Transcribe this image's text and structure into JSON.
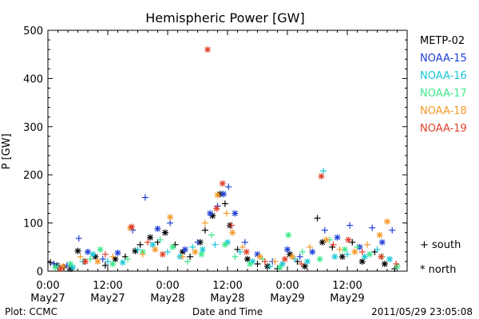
{
  "chart_data": {
    "type": "scatter",
    "title": "Hemispheric Power [GW]",
    "xlabel": "Date and Time",
    "ylabel": "P [GW]",
    "ylim": [
      0,
      500
    ],
    "yticks": [
      0,
      100,
      200,
      300,
      400,
      500
    ],
    "xlim": [
      0,
      72
    ],
    "xticks": [
      {
        "x": 0,
        "time": "0:00",
        "date": "May27"
      },
      {
        "x": 12,
        "time": "12:00",
        "date": "May27"
      },
      {
        "x": 24,
        "time": "0:00",
        "date": "May28"
      },
      {
        "x": 36,
        "time": "12:00",
        "date": "May28"
      },
      {
        "x": 48,
        "time": "0:00",
        "date": "May29"
      },
      {
        "x": 60,
        "time": "12:00",
        "date": "May29"
      }
    ],
    "legend_position": "right",
    "series": [
      {
        "name": "METP-02",
        "color": "#000000"
      },
      {
        "name": "NOAA-15",
        "color": "#1f3fd6"
      },
      {
        "name": "NOAA-16",
        "color": "#18c8d8"
      },
      {
        "name": "NOAA-17",
        "color": "#3ee88c"
      },
      {
        "name": "NOAA-18",
        "color": "#f39a2a"
      },
      {
        "name": "NOAA-19",
        "color": "#e0402a"
      }
    ],
    "marker_legend": [
      {
        "symbol": "+",
        "label": "south"
      },
      {
        "symbol": "*",
        "label": "north"
      }
    ],
    "footer_left": "Plot: CCMC",
    "footer_right": "2011/05/29 23:05:08",
    "points": [
      {
        "s": 0,
        "m": "+",
        "x": 0.5,
        "y": 18
      },
      {
        "s": 0,
        "m": "*",
        "x": 1.8,
        "y": 12
      },
      {
        "s": 0,
        "m": "+",
        "x": 3.2,
        "y": 8
      },
      {
        "s": 0,
        "m": "*",
        "x": 4.6,
        "y": 5
      },
      {
        "s": 0,
        "m": "*",
        "x": 6.0,
        "y": 42
      },
      {
        "s": 0,
        "m": "+",
        "x": 7.4,
        "y": 20
      },
      {
        "s": 0,
        "m": "*",
        "x": 9.5,
        "y": 30
      },
      {
        "s": 0,
        "m": "+",
        "x": 11.5,
        "y": 12
      },
      {
        "s": 0,
        "m": "*",
        "x": 13.5,
        "y": 25
      },
      {
        "s": 0,
        "m": "+",
        "x": 15.5,
        "y": 30
      },
      {
        "s": 0,
        "m": "*",
        "x": 17.5,
        "y": 42
      },
      {
        "s": 0,
        "m": "+",
        "x": 18.5,
        "y": 55
      },
      {
        "s": 0,
        "m": "*",
        "x": 20.5,
        "y": 70
      },
      {
        "s": 0,
        "m": "+",
        "x": 22.0,
        "y": 60
      },
      {
        "s": 0,
        "m": "*",
        "x": 23.5,
        "y": 80
      },
      {
        "s": 0,
        "m": "+",
        "x": 25.5,
        "y": 55
      },
      {
        "s": 0,
        "m": "*",
        "x": 27.0,
        "y": 40
      },
      {
        "s": 0,
        "m": "+",
        "x": 28.5,
        "y": 30
      },
      {
        "s": 0,
        "m": "*",
        "x": 30.5,
        "y": 60
      },
      {
        "s": 0,
        "m": "+",
        "x": 31.5,
        "y": 85
      },
      {
        "s": 0,
        "m": "*",
        "x": 33.0,
        "y": 115
      },
      {
        "s": 0,
        "m": "*",
        "x": 34.5,
        "y": 160
      },
      {
        "s": 0,
        "m": "+",
        "x": 35.5,
        "y": 140
      },
      {
        "s": 0,
        "m": "*",
        "x": 36.5,
        "y": 95
      },
      {
        "s": 0,
        "m": "+",
        "x": 38.0,
        "y": 45
      },
      {
        "s": 0,
        "m": "*",
        "x": 40.0,
        "y": 25
      },
      {
        "s": 0,
        "m": "+",
        "x": 42.0,
        "y": 15
      },
      {
        "s": 0,
        "m": "*",
        "x": 44.0,
        "y": 10
      },
      {
        "s": 0,
        "m": "+",
        "x": 46.0,
        "y": 5
      },
      {
        "s": 0,
        "m": "*",
        "x": 48.5,
        "y": 35
      },
      {
        "s": 0,
        "m": "+",
        "x": 50.0,
        "y": 20
      },
      {
        "s": 0,
        "m": "*",
        "x": 51.5,
        "y": 10
      },
      {
        "s": 0,
        "m": "+",
        "x": 54.0,
        "y": 110
      },
      {
        "s": 0,
        "m": "*",
        "x": 55.0,
        "y": 60
      },
      {
        "s": 0,
        "m": "+",
        "x": 57.0,
        "y": 50
      },
      {
        "s": 0,
        "m": "*",
        "x": 59.0,
        "y": 30
      },
      {
        "s": 0,
        "m": "+",
        "x": 61.0,
        "y": 60
      },
      {
        "s": 0,
        "m": "*",
        "x": 63.0,
        "y": 20
      },
      {
        "s": 0,
        "m": "+",
        "x": 65.5,
        "y": 40
      },
      {
        "s": 0,
        "m": "*",
        "x": 67.5,
        "y": 15
      },
      {
        "s": 0,
        "m": "+",
        "x": 69.5,
        "y": 5
      },
      {
        "s": 1,
        "m": "+",
        "x": 1.2,
        "y": 15
      },
      {
        "s": 1,
        "m": "+",
        "x": 3.8,
        "y": 12
      },
      {
        "s": 1,
        "m": "+",
        "x": 6.2,
        "y": 68
      },
      {
        "s": 1,
        "m": "*",
        "x": 8.0,
        "y": 40
      },
      {
        "s": 1,
        "m": "+",
        "x": 11.0,
        "y": 25
      },
      {
        "s": 1,
        "m": "*",
        "x": 14.0,
        "y": 38
      },
      {
        "s": 1,
        "m": "+",
        "x": 17.0,
        "y": 85
      },
      {
        "s": 1,
        "m": "+",
        "x": 19.5,
        "y": 153
      },
      {
        "s": 1,
        "m": "*",
        "x": 22.0,
        "y": 88
      },
      {
        "s": 1,
        "m": "+",
        "x": 24.5,
        "y": 100
      },
      {
        "s": 1,
        "m": "*",
        "x": 27.5,
        "y": 45
      },
      {
        "s": 1,
        "m": "+",
        "x": 30.0,
        "y": 60
      },
      {
        "s": 1,
        "m": "*",
        "x": 32.5,
        "y": 120
      },
      {
        "s": 1,
        "m": "+",
        "x": 34.0,
        "y": 135
      },
      {
        "s": 1,
        "m": "*",
        "x": 35.2,
        "y": 160
      },
      {
        "s": 1,
        "m": "+",
        "x": 36.2,
        "y": 175
      },
      {
        "s": 1,
        "m": "*",
        "x": 37.5,
        "y": 120
      },
      {
        "s": 1,
        "m": "+",
        "x": 39.5,
        "y": 60
      },
      {
        "s": 1,
        "m": "*",
        "x": 42.0,
        "y": 35
      },
      {
        "s": 1,
        "m": "+",
        "x": 45.0,
        "y": 20
      },
      {
        "s": 1,
        "m": "*",
        "x": 48.0,
        "y": 45
      },
      {
        "s": 1,
        "m": "+",
        "x": 50.5,
        "y": 30
      },
      {
        "s": 1,
        "m": "*",
        "x": 53.0,
        "y": 40
      },
      {
        "s": 1,
        "m": "+",
        "x": 55.5,
        "y": 85
      },
      {
        "s": 1,
        "m": "*",
        "x": 58.0,
        "y": 70
      },
      {
        "s": 1,
        "m": "+",
        "x": 60.5,
        "y": 95
      },
      {
        "s": 1,
        "m": "*",
        "x": 62.5,
        "y": 50
      },
      {
        "s": 1,
        "m": "+",
        "x": 65.0,
        "y": 90
      },
      {
        "s": 1,
        "m": "*",
        "x": 67.0,
        "y": 60
      },
      {
        "s": 1,
        "m": "+",
        "x": 69.0,
        "y": 85
      },
      {
        "s": 2,
        "m": "+",
        "x": 2.0,
        "y": 10
      },
      {
        "s": 2,
        "m": "*",
        "x": 5.0,
        "y": 8
      },
      {
        "s": 2,
        "m": "+",
        "x": 7.0,
        "y": 20
      },
      {
        "s": 2,
        "m": "*",
        "x": 9.0,
        "y": 35
      },
      {
        "s": 2,
        "m": "+",
        "x": 12.0,
        "y": 20
      },
      {
        "s": 2,
        "m": "*",
        "x": 15.0,
        "y": 18
      },
      {
        "s": 2,
        "m": "+",
        "x": 18.0,
        "y": 45
      },
      {
        "s": 2,
        "m": "*",
        "x": 21.0,
        "y": 55
      },
      {
        "s": 2,
        "m": "+",
        "x": 24.0,
        "y": 40
      },
      {
        "s": 2,
        "m": "*",
        "x": 26.5,
        "y": 30
      },
      {
        "s": 2,
        "m": "+",
        "x": 29.0,
        "y": 50
      },
      {
        "s": 2,
        "m": "*",
        "x": 31.0,
        "y": 45
      },
      {
        "s": 2,
        "m": "+",
        "x": 33.5,
        "y": 55
      },
      {
        "s": 2,
        "m": "*",
        "x": 36.0,
        "y": 60
      },
      {
        "s": 2,
        "m": "+",
        "x": 38.5,
        "y": 40
      },
      {
        "s": 2,
        "m": "*",
        "x": 41.0,
        "y": 20
      },
      {
        "s": 2,
        "m": "+",
        "x": 44.5,
        "y": 10
      },
      {
        "s": 2,
        "m": "*",
        "x": 47.0,
        "y": 15
      },
      {
        "s": 2,
        "m": "+",
        "x": 49.5,
        "y": 25
      },
      {
        "s": 2,
        "m": "*",
        "x": 52.0,
        "y": 20
      },
      {
        "s": 2,
        "m": "+",
        "x": 55.2,
        "y": 208
      },
      {
        "s": 2,
        "m": "*",
        "x": 57.5,
        "y": 30
      },
      {
        "s": 2,
        "m": "+",
        "x": 60.0,
        "y": 35
      },
      {
        "s": 2,
        "m": "*",
        "x": 63.5,
        "y": 30
      },
      {
        "s": 2,
        "m": "+",
        "x": 66.0,
        "y": 45
      },
      {
        "s": 2,
        "m": "*",
        "x": 68.5,
        "y": 25
      },
      {
        "s": 3,
        "m": "*",
        "x": 1.5,
        "y": 8
      },
      {
        "s": 3,
        "m": "*",
        "x": 4.5,
        "y": 15
      },
      {
        "s": 3,
        "m": "+",
        "x": 8.5,
        "y": 25
      },
      {
        "s": 3,
        "m": "*",
        "x": 10.5,
        "y": 45
      },
      {
        "s": 3,
        "m": "*",
        "x": 13.0,
        "y": 15
      },
      {
        "s": 3,
        "m": "+",
        "x": 16.0,
        "y": 25
      },
      {
        "s": 3,
        "m": "*",
        "x": 19.0,
        "y": 40
      },
      {
        "s": 3,
        "m": "+",
        "x": 22.5,
        "y": 65
      },
      {
        "s": 3,
        "m": "*",
        "x": 25.0,
        "y": 50
      },
      {
        "s": 3,
        "m": "+",
        "x": 28.0,
        "y": 20
      },
      {
        "s": 3,
        "m": "*",
        "x": 30.8,
        "y": 35
      },
      {
        "s": 3,
        "m": "+",
        "x": 32.8,
        "y": 75
      },
      {
        "s": 3,
        "m": "*",
        "x": 35.5,
        "y": 55
      },
      {
        "s": 3,
        "m": "+",
        "x": 37.5,
        "y": 30
      },
      {
        "s": 3,
        "m": "*",
        "x": 40.5,
        "y": 15
      },
      {
        "s": 3,
        "m": "+",
        "x": 43.0,
        "y": 25
      },
      {
        "s": 3,
        "m": "*",
        "x": 46.5,
        "y": 8
      },
      {
        "s": 3,
        "m": "*",
        "x": 48.2,
        "y": 75
      },
      {
        "s": 3,
        "m": "+",
        "x": 51.0,
        "y": 40
      },
      {
        "s": 3,
        "m": "*",
        "x": 54.5,
        "y": 25
      },
      {
        "s": 3,
        "m": "+",
        "x": 56.5,
        "y": 65
      },
      {
        "s": 3,
        "m": "*",
        "x": 59.5,
        "y": 45
      },
      {
        "s": 3,
        "m": "+",
        "x": 62.0,
        "y": 50
      },
      {
        "s": 3,
        "m": "*",
        "x": 64.5,
        "y": 35
      },
      {
        "s": 3,
        "m": "+",
        "x": 67.0,
        "y": 30
      },
      {
        "s": 3,
        "m": "*",
        "x": 70.0,
        "y": 10
      },
      {
        "s": 4,
        "m": "*",
        "x": 3.0,
        "y": 10
      },
      {
        "s": 4,
        "m": "+",
        "x": 6.5,
        "y": 30
      },
      {
        "s": 4,
        "m": "*",
        "x": 10.0,
        "y": 20
      },
      {
        "s": 4,
        "m": "+",
        "x": 13.0,
        "y": 30
      },
      {
        "s": 4,
        "m": "*",
        "x": 16.5,
        "y": 90
      },
      {
        "s": 4,
        "m": "+",
        "x": 19.0,
        "y": 35
      },
      {
        "s": 4,
        "m": "*",
        "x": 21.5,
        "y": 45
      },
      {
        "s": 4,
        "m": "*",
        "x": 24.5,
        "y": 112
      },
      {
        "s": 4,
        "m": "+",
        "x": 27.0,
        "y": 30
      },
      {
        "s": 4,
        "m": "*",
        "x": 29.5,
        "y": 40
      },
      {
        "s": 4,
        "m": "+",
        "x": 31.5,
        "y": 100
      },
      {
        "s": 4,
        "m": "*",
        "x": 34.0,
        "y": 158
      },
      {
        "s": 4,
        "m": "+",
        "x": 35.8,
        "y": 120
      },
      {
        "s": 4,
        "m": "*",
        "x": 37.0,
        "y": 80
      },
      {
        "s": 4,
        "m": "+",
        "x": 39.0,
        "y": 50
      },
      {
        "s": 4,
        "m": "*",
        "x": 42.5,
        "y": 30
      },
      {
        "s": 4,
        "m": "+",
        "x": 45.5,
        "y": 20
      },
      {
        "s": 4,
        "m": "*",
        "x": 49.0,
        "y": 30
      },
      {
        "s": 4,
        "m": "+",
        "x": 52.5,
        "y": 50
      },
      {
        "s": 4,
        "m": "*",
        "x": 55.8,
        "y": 65
      },
      {
        "s": 4,
        "m": "+",
        "x": 58.5,
        "y": 45
      },
      {
        "s": 4,
        "m": "*",
        "x": 61.5,
        "y": 40
      },
      {
        "s": 4,
        "m": "+",
        "x": 64.0,
        "y": 55
      },
      {
        "s": 4,
        "m": "*",
        "x": 66.5,
        "y": 75
      },
      {
        "s": 4,
        "m": "*",
        "x": 68.0,
        "y": 103
      },
      {
        "s": 5,
        "m": "*",
        "x": 2.5,
        "y": 5
      },
      {
        "s": 5,
        "m": "*",
        "x": 7.5,
        "y": 20
      },
      {
        "s": 5,
        "m": "+",
        "x": 11.5,
        "y": 35
      },
      {
        "s": 5,
        "m": "*",
        "x": 16.8,
        "y": 92
      },
      {
        "s": 5,
        "m": "+",
        "x": 20.0,
        "y": 60
      },
      {
        "s": 5,
        "m": "*",
        "x": 23.0,
        "y": 35
      },
      {
        "s": 5,
        "m": "*",
        "x": 32.0,
        "y": 460
      },
      {
        "s": 5,
        "m": "*",
        "x": 33.8,
        "y": 130
      },
      {
        "s": 5,
        "m": "*",
        "x": 35.0,
        "y": 182
      },
      {
        "s": 5,
        "m": "+",
        "x": 36.8,
        "y": 95
      },
      {
        "s": 5,
        "m": "*",
        "x": 39.8,
        "y": 40
      },
      {
        "s": 5,
        "m": "+",
        "x": 43.5,
        "y": 20
      },
      {
        "s": 5,
        "m": "*",
        "x": 47.5,
        "y": 25
      },
      {
        "s": 5,
        "m": "+",
        "x": 50.8,
        "y": 15
      },
      {
        "s": 5,
        "m": "*",
        "x": 54.8,
        "y": 197
      },
      {
        "s": 5,
        "m": "+",
        "x": 57.2,
        "y": 55
      },
      {
        "s": 5,
        "m": "*",
        "x": 60.2,
        "y": 65
      },
      {
        "s": 5,
        "m": "+",
        "x": 63.0,
        "y": 40
      },
      {
        "s": 5,
        "m": "*",
        "x": 66.8,
        "y": 30
      },
      {
        "s": 5,
        "m": "+",
        "x": 69.8,
        "y": 15
      }
    ]
  }
}
